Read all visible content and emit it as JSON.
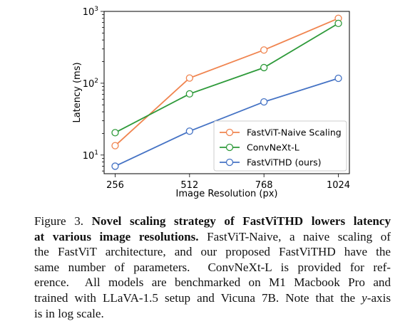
{
  "chart_data": {
    "type": "line",
    "x": [
      256,
      512,
      768,
      1024
    ],
    "x_tick_labels": [
      "256",
      "512",
      "768",
      "1024"
    ],
    "xlabel": "Image Resolution (px)",
    "ylabel": "Latency (ms)",
    "yscale": "log",
    "ylim": [
      5.5,
      1000
    ],
    "y_tick_labels": [
      {
        "value": 10,
        "base": "10",
        "exp": "1"
      },
      {
        "value": 100,
        "base": "10",
        "exp": "2"
      },
      {
        "value": 1000,
        "base": "10",
        "exp": "3"
      }
    ],
    "grid": "off",
    "legend": "lower-right",
    "series": [
      {
        "name": "FastViT-Naive Scaling",
        "color": "#f0844f",
        "values": [
          13.5,
          118,
          290,
          800
        ]
      },
      {
        "name": "ConvNeXt-L",
        "color": "#2e9a3a",
        "values": [
          20.5,
          71,
          165,
          680
        ]
      },
      {
        "name": "FastViTHD (ours)",
        "color": "#4472c4",
        "values": [
          7,
          21.5,
          55,
          117
        ]
      }
    ]
  },
  "caption": {
    "lines": [
      [
        {
          "text": "Figure 3. "
        },
        {
          "text": "Novel scaling strategy of FastViTHD lowers latency",
          "style": "b"
        }
      ],
      [
        {
          "text": "at various image resolutions.",
          "style": "b"
        },
        {
          "text": " FastViT-Naive, a naive scaling of"
        }
      ],
      [
        {
          "text": "the FastViT architecture, and our proposed FastViTHD have the"
        }
      ],
      [
        {
          "text": "same number of parameters.  ConvNeXt-L is provided for ref-"
        }
      ],
      [
        {
          "text": "erence.  All models are benchmarked on M1 Macbook Pro and"
        }
      ],
      [
        {
          "text": "trained with LLaVA-1.5 setup and Vicuna 7B. Note that the "
        },
        {
          "text": "y",
          "style": "i"
        },
        {
          "text": "-axis"
        }
      ],
      [
        {
          "text": "is in log scale."
        }
      ]
    ]
  }
}
